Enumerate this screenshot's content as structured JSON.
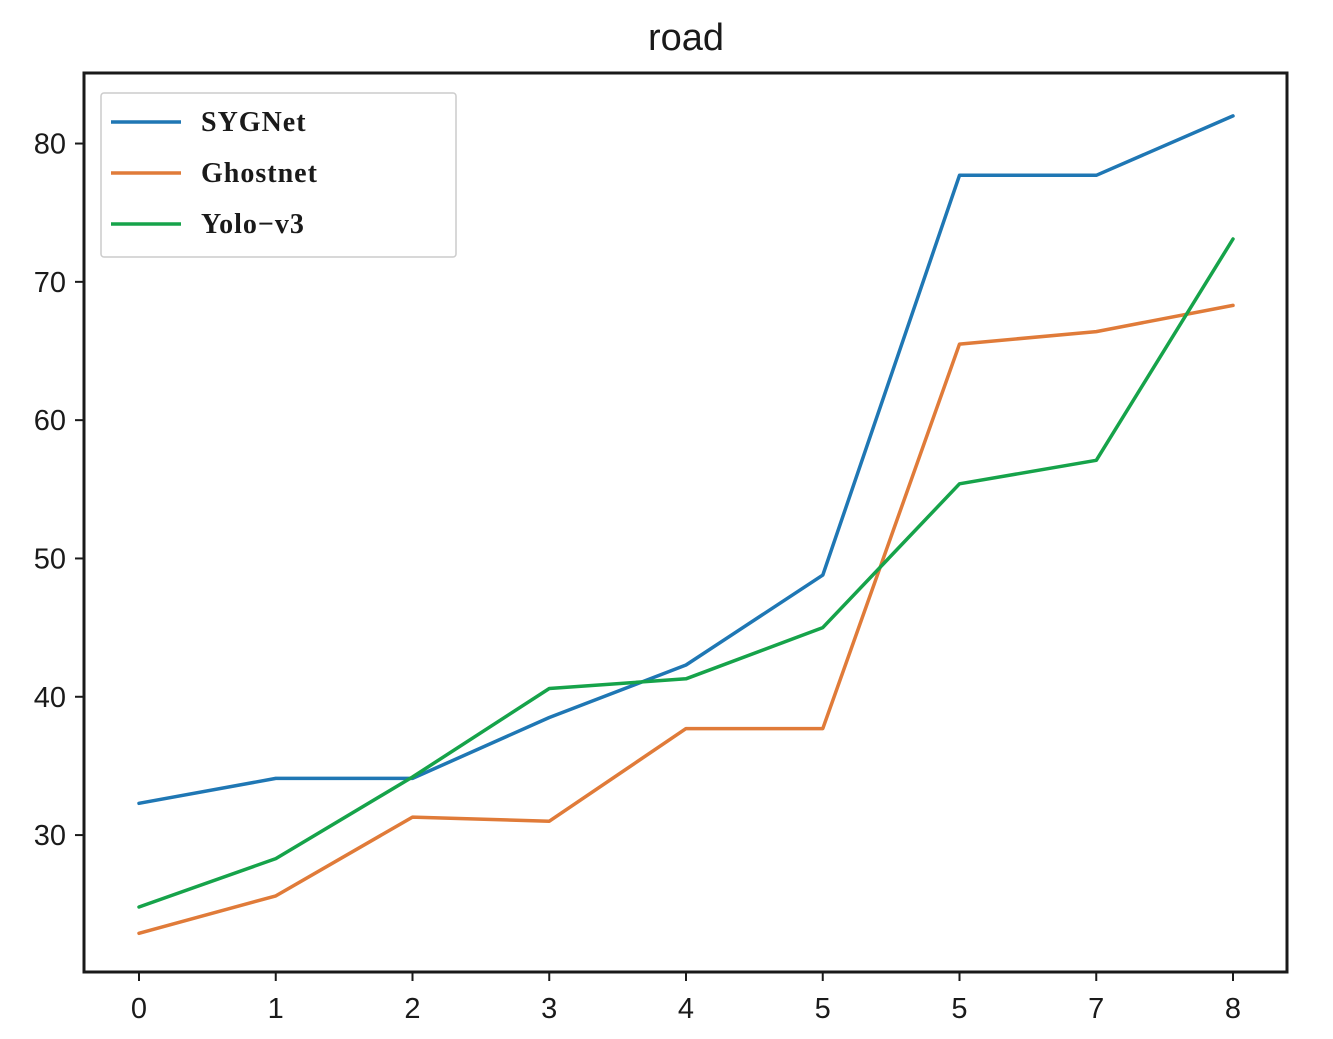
{
  "chart_data": {
    "type": "line",
    "title": "road",
    "xlabel": "",
    "ylabel": "",
    "categories": [
      "0",
      "1",
      "2",
      "3",
      "4",
      "5",
      "5",
      "7",
      "8"
    ],
    "y_ticks": [
      30,
      40,
      50,
      60,
      70,
      80
    ],
    "ylim": [
      20.1,
      85.1
    ],
    "grid": false,
    "legend_position": "top-left",
    "series": [
      {
        "name": "SYGNet",
        "color": "#1f77b4",
        "values": [
          32.3,
          34.1,
          34.1,
          38.5,
          42.3,
          48.8,
          77.7,
          77.7,
          82.0
        ]
      },
      {
        "name": "Ghostnet",
        "color": "#e07b39",
        "values": [
          22.9,
          25.6,
          31.3,
          31.0,
          37.7,
          37.7,
          65.5,
          66.4,
          68.3
        ]
      },
      {
        "name": "Yolo−v3",
        "color": "#16a34a",
        "values": [
          24.8,
          28.3,
          34.2,
          40.6,
          41.3,
          45.0,
          55.4,
          57.1,
          73.1
        ]
      }
    ]
  }
}
